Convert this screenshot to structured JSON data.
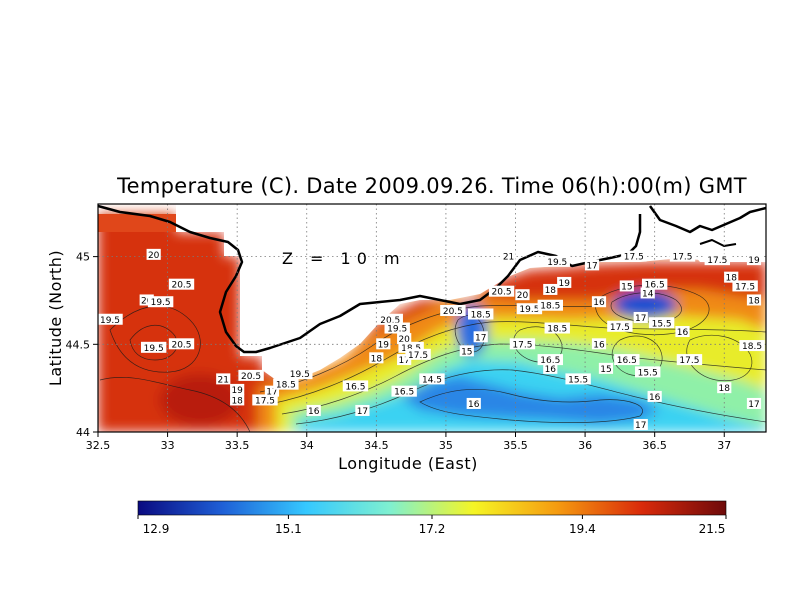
{
  "chart_data": {
    "type": "heatmap",
    "title": "Temperature (C). Date 2009.09.26. Time 06(h):00(m) GMT",
    "xlabel": "Longitude (East)",
    "ylabel": "Latitude (North)",
    "annotation": "Z = 10 m",
    "xlim": [
      32.5,
      37.3
    ],
    "ylim": [
      44.0,
      45.3
    ],
    "x_ticks": [
      32.5,
      33,
      33.5,
      34,
      34.5,
      35,
      35.5,
      36,
      36.5,
      37
    ],
    "y_ticks": [
      44,
      44.5,
      45
    ],
    "x_tick_labels": [
      "32.5",
      "33",
      "33.5",
      "34",
      "34.5",
      "35",
      "35.5",
      "36",
      "36.5",
      "37"
    ],
    "y_tick_labels": [
      "44",
      "44.5",
      "45"
    ],
    "grid": true,
    "colorbar": {
      "min": 12.9,
      "max": 21.5,
      "tick_values": [
        12.9,
        15.1,
        17.2,
        19.4,
        21.5
      ],
      "tick_labels": [
        "12.9",
        "15.1",
        "17.2",
        "19.4",
        "21.5"
      ],
      "colors": [
        "#0a0a80",
        "#1f5fd6",
        "#35c8ff",
        "#7ff0d0",
        "#f5f524",
        "#f59a10",
        "#d92a0a",
        "#6e0a0a"
      ]
    },
    "contour_labels": [
      {
        "lon": 32.9,
        "lat": 45.01,
        "value": "20"
      },
      {
        "lon": 33.1,
        "lat": 44.84,
        "value": "20.5"
      },
      {
        "lon": 32.85,
        "lat": 44.75,
        "value": "20"
      },
      {
        "lon": 32.95,
        "lat": 44.74,
        "value": "19.5"
      },
      {
        "lon": 32.55,
        "lat": 44.64,
        "value": "19.5"
      },
      {
        "lon": 32.9,
        "lat": 44.48,
        "value": "19.5"
      },
      {
        "lon": 33.1,
        "lat": 44.5,
        "value": "20.5"
      },
      {
        "lon": 33.4,
        "lat": 44.3,
        "value": "21"
      },
      {
        "lon": 33.6,
        "lat": 44.32,
        "value": "20.5"
      },
      {
        "lon": 33.95,
        "lat": 44.33,
        "value": "19.5"
      },
      {
        "lon": 33.5,
        "lat": 44.24,
        "value": "19"
      },
      {
        "lon": 33.75,
        "lat": 44.23,
        "value": "17"
      },
      {
        "lon": 33.5,
        "lat": 44.18,
        "value": "18"
      },
      {
        "lon": 33.7,
        "lat": 44.18,
        "value": "17.5"
      },
      {
        "lon": 33.85,
        "lat": 44.27,
        "value": "18.5"
      },
      {
        "lon": 34.05,
        "lat": 44.12,
        "value": "16"
      },
      {
        "lon": 34.35,
        "lat": 44.26,
        "value": "16.5"
      },
      {
        "lon": 34.4,
        "lat": 44.12,
        "value": "17"
      },
      {
        "lon": 34.5,
        "lat": 44.42,
        "value": "18"
      },
      {
        "lon": 34.55,
        "lat": 44.5,
        "value": "19"
      },
      {
        "lon": 34.6,
        "lat": 44.64,
        "value": "20.5"
      },
      {
        "lon": 34.65,
        "lat": 44.59,
        "value": "19.5"
      },
      {
        "lon": 34.7,
        "lat": 44.53,
        "value": "20"
      },
      {
        "lon": 34.7,
        "lat": 44.41,
        "value": "17"
      },
      {
        "lon": 34.75,
        "lat": 44.48,
        "value": "18.5"
      },
      {
        "lon": 34.8,
        "lat": 44.44,
        "value": "17.5"
      },
      {
        "lon": 34.7,
        "lat": 44.23,
        "value": "16.5"
      },
      {
        "lon": 34.9,
        "lat": 44.3,
        "value": "14.5"
      },
      {
        "lon": 35.05,
        "lat": 44.69,
        "value": "20.5"
      },
      {
        "lon": 35.25,
        "lat": 44.67,
        "value": "18.5"
      },
      {
        "lon": 35.15,
        "lat": 44.46,
        "value": "15"
      },
      {
        "lon": 35.25,
        "lat": 44.54,
        "value": "17"
      },
      {
        "lon": 35.2,
        "lat": 44.16,
        "value": "16"
      },
      {
        "lon": 35.45,
        "lat": 45.0,
        "value": "21"
      },
      {
        "lon": 35.4,
        "lat": 44.8,
        "value": "20.5"
      },
      {
        "lon": 35.55,
        "lat": 44.78,
        "value": "20"
      },
      {
        "lon": 35.6,
        "lat": 44.7,
        "value": "19.5"
      },
      {
        "lon": 35.8,
        "lat": 44.97,
        "value": "19.5"
      },
      {
        "lon": 35.75,
        "lat": 44.81,
        "value": "18"
      },
      {
        "lon": 35.85,
        "lat": 44.85,
        "value": "19"
      },
      {
        "lon": 35.75,
        "lat": 44.72,
        "value": "18.5"
      },
      {
        "lon": 35.55,
        "lat": 44.5,
        "value": "17.5"
      },
      {
        "lon": 35.8,
        "lat": 44.59,
        "value": "18.5"
      },
      {
        "lon": 35.75,
        "lat": 44.41,
        "value": "16.5"
      },
      {
        "lon": 35.75,
        "lat": 44.36,
        "value": "16"
      },
      {
        "lon": 35.95,
        "lat": 44.3,
        "value": "15.5"
      },
      {
        "lon": 36.05,
        "lat": 44.95,
        "value": "17"
      },
      {
        "lon": 36.35,
        "lat": 45.0,
        "value": "17.5"
      },
      {
        "lon": 36.7,
        "lat": 45.0,
        "value": "17.5"
      },
      {
        "lon": 36.3,
        "lat": 44.83,
        "value": "15"
      },
      {
        "lon": 36.5,
        "lat": 44.84,
        "value": "16.5"
      },
      {
        "lon": 36.45,
        "lat": 44.79,
        "value": "14"
      },
      {
        "lon": 36.1,
        "lat": 44.74,
        "value": "16"
      },
      {
        "lon": 36.4,
        "lat": 44.65,
        "value": "17"
      },
      {
        "lon": 36.25,
        "lat": 44.6,
        "value": "17.5"
      },
      {
        "lon": 36.55,
        "lat": 44.62,
        "value": "15.5"
      },
      {
        "lon": 36.7,
        "lat": 44.57,
        "value": "16"
      },
      {
        "lon": 36.1,
        "lat": 44.5,
        "value": "16"
      },
      {
        "lon": 36.3,
        "lat": 44.41,
        "value": "16.5"
      },
      {
        "lon": 36.15,
        "lat": 44.36,
        "value": "15"
      },
      {
        "lon": 36.45,
        "lat": 44.34,
        "value": "15.5"
      },
      {
        "lon": 36.75,
        "lat": 44.41,
        "value": "17.5"
      },
      {
        "lon": 36.5,
        "lat": 44.2,
        "value": "16"
      },
      {
        "lon": 36.4,
        "lat": 44.04,
        "value": "17"
      },
      {
        "lon": 36.95,
        "lat": 44.98,
        "value": "17.5"
      },
      {
        "lon": 37.05,
        "lat": 44.88,
        "value": "18"
      },
      {
        "lon": 37.15,
        "lat": 44.83,
        "value": "17.5"
      },
      {
        "lon": 37.3,
        "lat": 44.98,
        "value": "19"
      },
      {
        "lon": 37.3,
        "lat": 44.75,
        "value": "18"
      },
      {
        "lon": 37.2,
        "lat": 44.49,
        "value": "18.5"
      },
      {
        "lon": 37.0,
        "lat": 44.25,
        "value": "18"
      },
      {
        "lon": 37.3,
        "lat": 44.16,
        "value": "17"
      }
    ]
  }
}
